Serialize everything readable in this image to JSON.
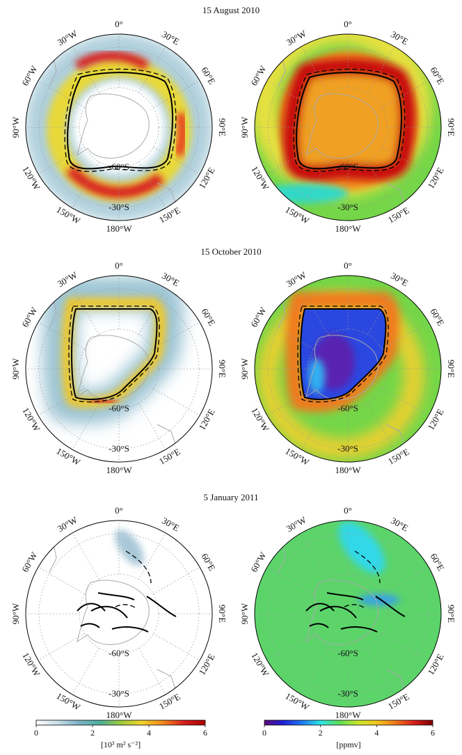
{
  "figure": {
    "rows": [
      {
        "title": "15 August 2010"
      },
      {
        "title": "15 October 2010"
      },
      {
        "title": "5 January 2011"
      }
    ],
    "lon_labels": [
      "0°",
      "30°E",
      "60°E",
      "90°E",
      "120°E",
      "150°E",
      "180°W",
      "150°W",
      "120°W",
      "90°W",
      "60°W",
      "30°W"
    ],
    "lat_labels": [
      "-60°S",
      "-30°S"
    ],
    "colorbars": [
      {
        "label": "[10³ m² s⁻²]",
        "lim": [
          0,
          6
        ],
        "ticks": [
          0,
          2,
          4,
          6
        ],
        "colors": [
          "#ffffff",
          "#c9dfe8",
          "#7fb3c8",
          "#4aae9c",
          "#9ccc3c",
          "#f2d22a",
          "#f08a1c",
          "#d81e1e",
          "#a80000"
        ]
      },
      {
        "label": "[ppmv]",
        "lim": [
          0,
          6
        ],
        "ticks": [
          0,
          2,
          4,
          6
        ],
        "colors": [
          "#5a0a78",
          "#2020d8",
          "#1e78f0",
          "#2ee6e6",
          "#5ce05a",
          "#c8e62a",
          "#f2c81e",
          "#f0781a",
          "#d81e1e",
          "#800000"
        ]
      }
    ]
  }
}
